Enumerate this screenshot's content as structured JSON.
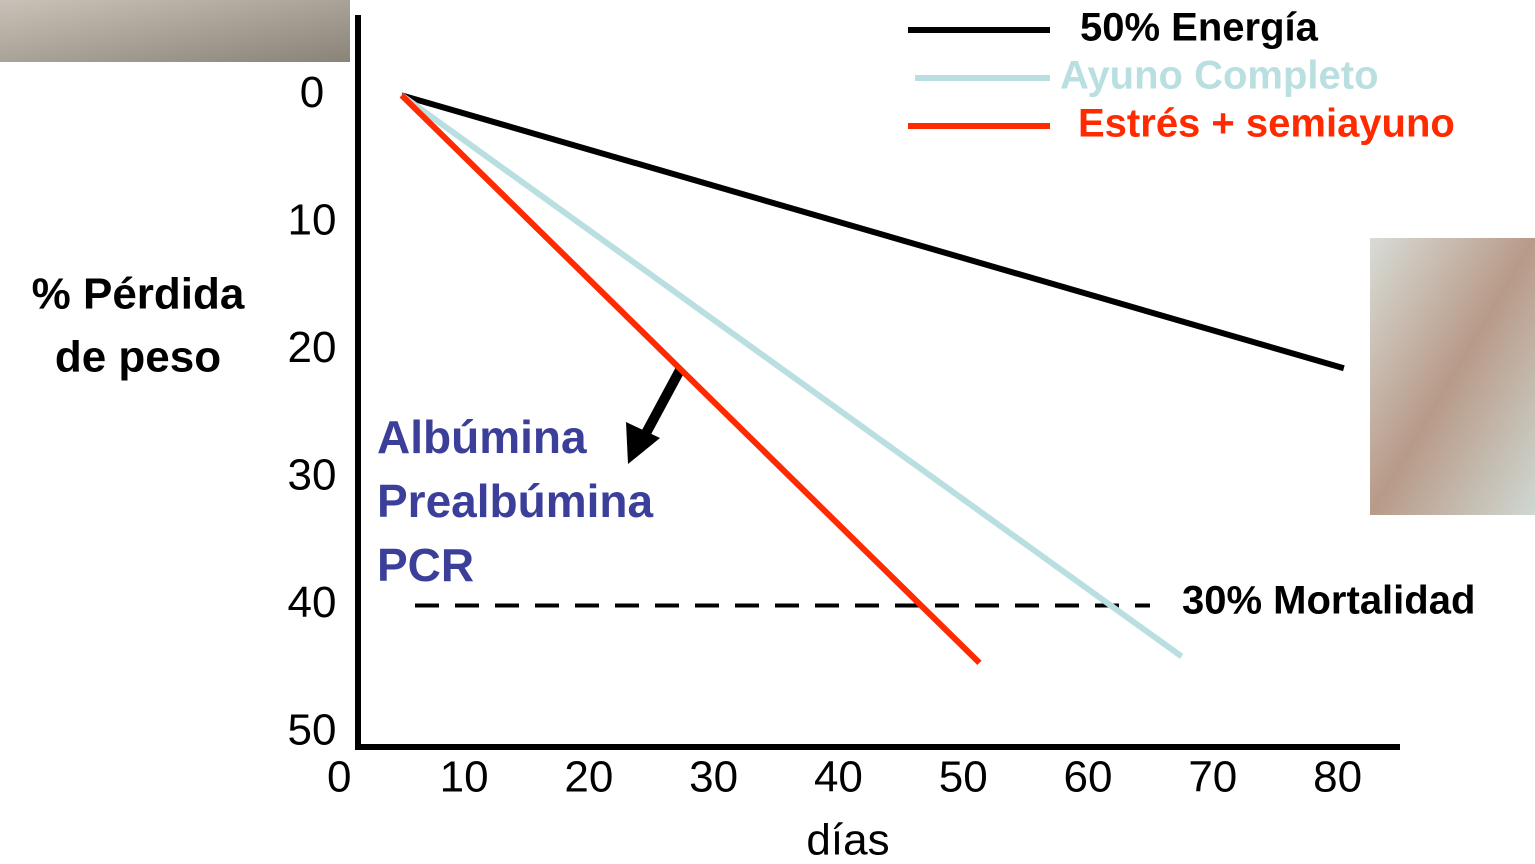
{
  "chart_data": {
    "type": "line",
    "x_label": "días",
    "y_label": [
      "% Pérdida",
      "de peso"
    ],
    "xlim": [
      1.5,
      85
    ],
    "xticks": [
      0,
      10,
      20,
      30,
      40,
      50,
      60,
      70,
      80
    ],
    "ylim": [
      -6.3,
      51.1
    ],
    "yticks": [
      0,
      10,
      20,
      30,
      40,
      50
    ],
    "y_inverted": true,
    "series": [
      {
        "name": "50% Energía",
        "color": "#000000",
        "x": [
          5,
          80.5
        ],
        "values": [
          0,
          21.4
        ]
      },
      {
        "name": "Ayuno Completo",
        "color": "#b9dfe0",
        "x": [
          5,
          67.5
        ],
        "values": [
          0,
          44
        ]
      },
      {
        "name": "Estrés + semiayuno",
        "color": "#ff2a00",
        "x": [
          5,
          51.3
        ],
        "values": [
          0,
          44.5
        ]
      }
    ],
    "reference_line": {
      "value": 40,
      "label": "30% Mortalidad"
    },
    "markers_label": [
      "Albúmina",
      "Prealbúmina",
      "PCR"
    ]
  }
}
